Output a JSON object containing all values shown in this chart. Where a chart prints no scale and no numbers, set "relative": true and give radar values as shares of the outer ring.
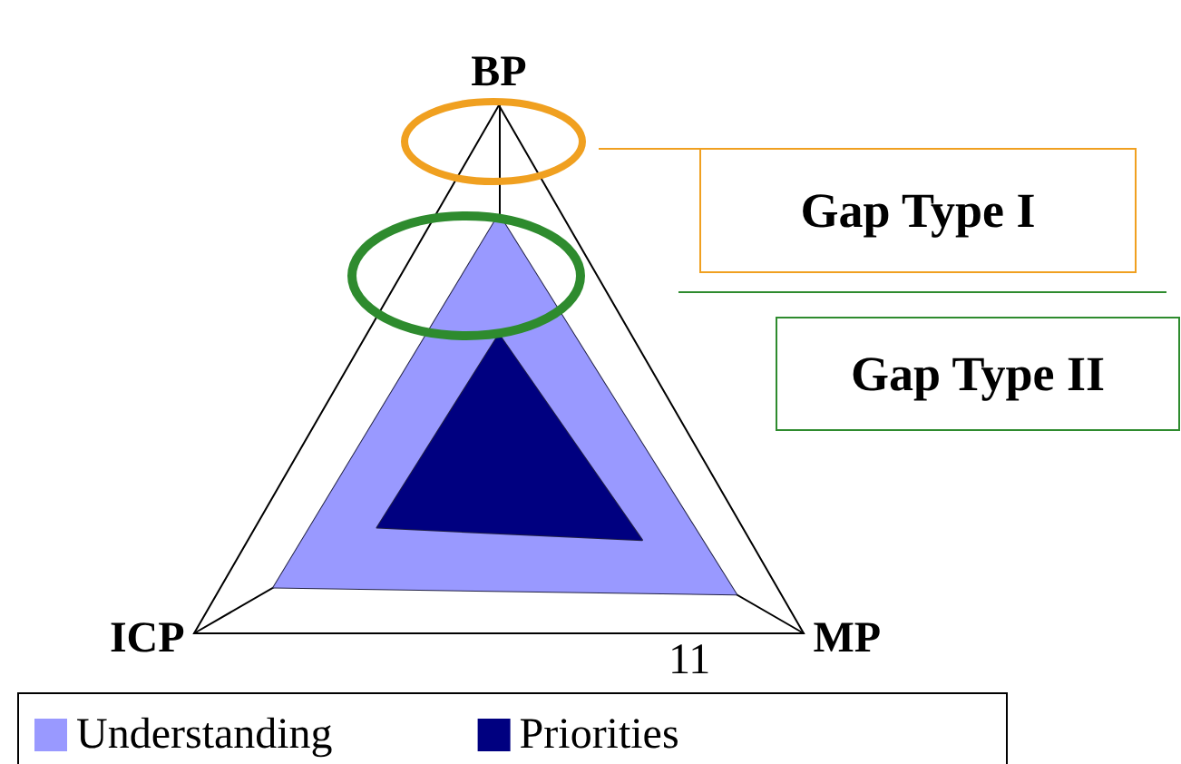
{
  "chart_data": {
    "type": "radar",
    "relative": true,
    "categories": [
      "BP",
      "MP",
      "ICP"
    ],
    "series": [
      {
        "name": "Understanding",
        "color": "#9999ff",
        "values": [
          0.69,
          0.78,
          0.74
        ]
      },
      {
        "name": "Priorities",
        "color": "#000080",
        "values": [
          0.35,
          0.47,
          0.4
        ]
      }
    ],
    "annotations": [
      "Gap Type I",
      "Gap Type II",
      "11"
    ],
    "legend": "bottom"
  }
}
